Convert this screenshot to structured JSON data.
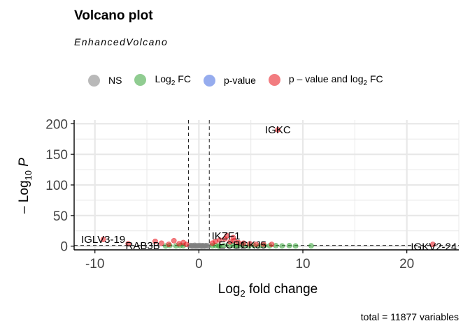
{
  "chart_data": {
    "type": "scatter",
    "title": "Volcano plot",
    "subtitle": "EnhancedVolcano",
    "caption": "total = 11877 variables",
    "xlabel": "Log2 fold change",
    "ylabel": "-Log10 P",
    "xlim": [
      -12,
      25
    ],
    "ylim": [
      -6,
      206
    ],
    "x_ticks": [
      -10,
      0,
      10,
      20
    ],
    "y_ticks": [
      0,
      50,
      100,
      150,
      200
    ],
    "fc_cutoff": 1,
    "p_cutoff_line": 1.3,
    "grid": true,
    "legend_position": "top",
    "legend": [
      {
        "key": "NS",
        "label": "NS",
        "color": "#808080"
      },
      {
        "key": "FC",
        "label": "Log",
        "sub": "2",
        "suffix": " FC",
        "color": "#36A438"
      },
      {
        "key": "P",
        "label": "p-value",
        "sub": "",
        "suffix": "",
        "color": "#4169E1"
      },
      {
        "key": "PFC",
        "label": "p – value and log",
        "sub": "2",
        "suffix": " FC",
        "color": "#E8121A"
      }
    ],
    "series": [
      {
        "name": "NS",
        "color": "#808080",
        "points": [
          [
            -0.9,
            0.5
          ],
          [
            -0.8,
            1.1
          ],
          [
            -0.7,
            0.3
          ],
          [
            -0.6,
            0.9
          ],
          [
            -0.5,
            0.2
          ],
          [
            -0.4,
            1.5
          ],
          [
            -0.3,
            0.6
          ],
          [
            -0.2,
            0.1
          ],
          [
            -0.1,
            0.8
          ],
          [
            0.0,
            0.4
          ],
          [
            0.1,
            1.2
          ],
          [
            0.2,
            0.2
          ],
          [
            0.3,
            0.7
          ],
          [
            0.4,
            1.0
          ],
          [
            0.5,
            0.3
          ],
          [
            0.6,
            0.5
          ],
          [
            0.7,
            1.1
          ],
          [
            0.8,
            0.2
          ],
          [
            0.9,
            0.6
          ],
          [
            -0.65,
            0.0
          ],
          [
            -0.35,
            0.0
          ],
          [
            0.25,
            0.0
          ],
          [
            0.55,
            0.0
          ],
          [
            -0.15,
            0.3
          ],
          [
            0.35,
            0.1
          ]
        ]
      },
      {
        "name": "Log2 FC",
        "color": "#36A438",
        "points": [
          [
            -1.5,
            0.6
          ],
          [
            -1.8,
            0.9
          ],
          [
            -2.2,
            0.4
          ],
          [
            -2.8,
            1.0
          ],
          [
            -3.2,
            0.3
          ],
          [
            1.3,
            0.5
          ],
          [
            1.6,
            1.0
          ],
          [
            2.0,
            0.3
          ],
          [
            2.4,
            0.8
          ],
          [
            2.9,
            0.5
          ],
          [
            3.3,
            1.1
          ],
          [
            3.8,
            0.4
          ],
          [
            4.3,
            0.9
          ],
          [
            4.8,
            0.2
          ],
          [
            5.3,
            0.8
          ],
          [
            5.8,
            0.4
          ],
          [
            6.3,
            1.0
          ],
          [
            6.8,
            0.5
          ],
          [
            7.4,
            0.8
          ],
          [
            8.0,
            0.4
          ],
          [
            8.7,
            0.9
          ],
          [
            9.3,
            0.4
          ],
          [
            10.8,
            0.6
          ],
          [
            1.9,
            0.2
          ],
          [
            3.6,
            0.1
          ]
        ]
      },
      {
        "name": "p-value",
        "color": "#4169E1",
        "points": []
      },
      {
        "name": "p – value and log2 FC",
        "color": "#E8121A",
        "points": [
          [
            7.6,
            190
          ],
          [
            -9.2,
            11
          ],
          [
            -6.8,
            4
          ],
          [
            -4.2,
            8
          ],
          [
            -3.6,
            5
          ],
          [
            -2.9,
            3
          ],
          [
            -2.4,
            9
          ],
          [
            -1.9,
            4
          ],
          [
            -1.5,
            6
          ],
          [
            -1.2,
            3
          ],
          [
            1.3,
            5
          ],
          [
            1.6,
            8
          ],
          [
            2.0,
            10
          ],
          [
            2.5,
            12
          ],
          [
            3.0,
            7
          ],
          [
            3.4,
            9
          ],
          [
            3.8,
            6
          ],
          [
            4.3,
            5
          ],
          [
            4.9,
            4
          ],
          [
            5.5,
            3
          ],
          [
            6.2,
            3.5
          ],
          [
            7.0,
            3
          ],
          [
            22.5,
            3
          ],
          [
            2.7,
            17
          ],
          [
            3.3,
            14
          ]
        ]
      }
    ],
    "labels": [
      {
        "text": "IGKC",
        "x": 7.6,
        "y": 190
      },
      {
        "text": "IGLV3-19",
        "x": -9.2,
        "y": 11
      },
      {
        "text": "RAB3B",
        "x": -5.4,
        "y": 1
      },
      {
        "text": "IKZF1",
        "x": 2.6,
        "y": 17
      },
      {
        "text": "ECE1",
        "x": 3.2,
        "y": 2
      },
      {
        "text": "IGKJ5",
        "x": 5.1,
        "y": 2
      },
      {
        "text": "IGKV2-24",
        "x": 22.6,
        "y": -1
      }
    ]
  }
}
